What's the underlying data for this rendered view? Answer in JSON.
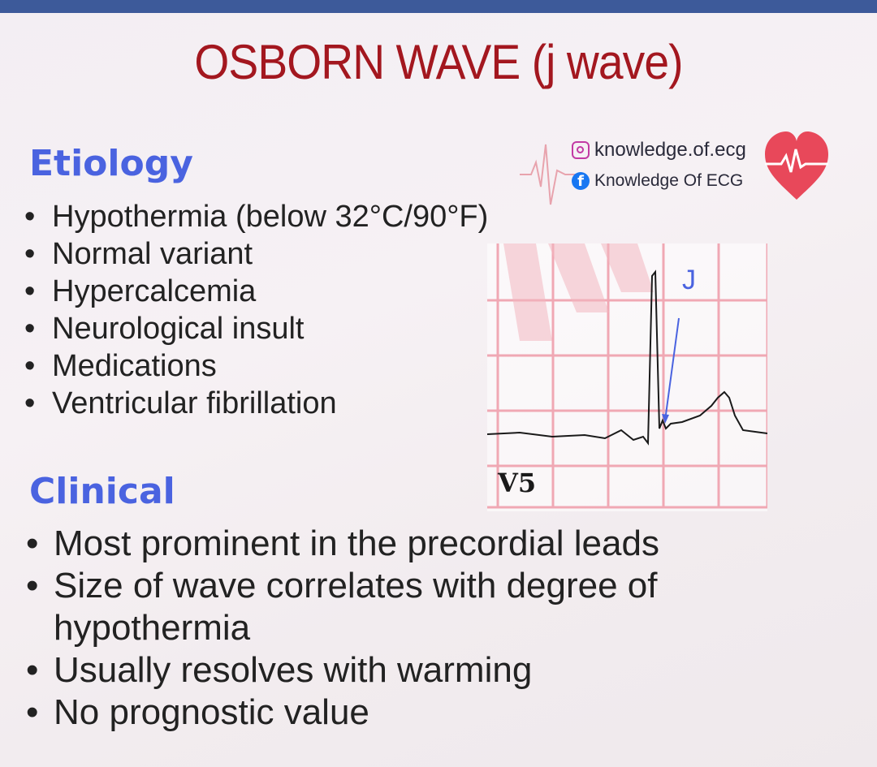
{
  "title": "OSBORN WAVE (j wave)",
  "etiology": {
    "heading": "Etiology",
    "items": [
      "Hypothermia (below 32°C/90°F)",
      "Normal variant",
      "Hypercalcemia",
      "Neurological insult",
      "Medications",
      "Ventricular fibrillation"
    ]
  },
  "clinical": {
    "heading": "Clinical",
    "items": [
      "Most prominent in the precordial leads",
      "Size of wave correlates with degree of hypothermia",
      "Usually resolves with warming",
      "No prognostic value"
    ]
  },
  "social": {
    "instagram": "knowledge.of.ecg",
    "facebook": "Knowledge Of ECG"
  },
  "ecg": {
    "lead": "V5",
    "annotation": "J"
  },
  "colors": {
    "top_bar": "#3d5a9a",
    "title": "#a3171f",
    "heading": "#4a63e0",
    "grid": "#f0a8b4",
    "heart": "#e8485a"
  }
}
